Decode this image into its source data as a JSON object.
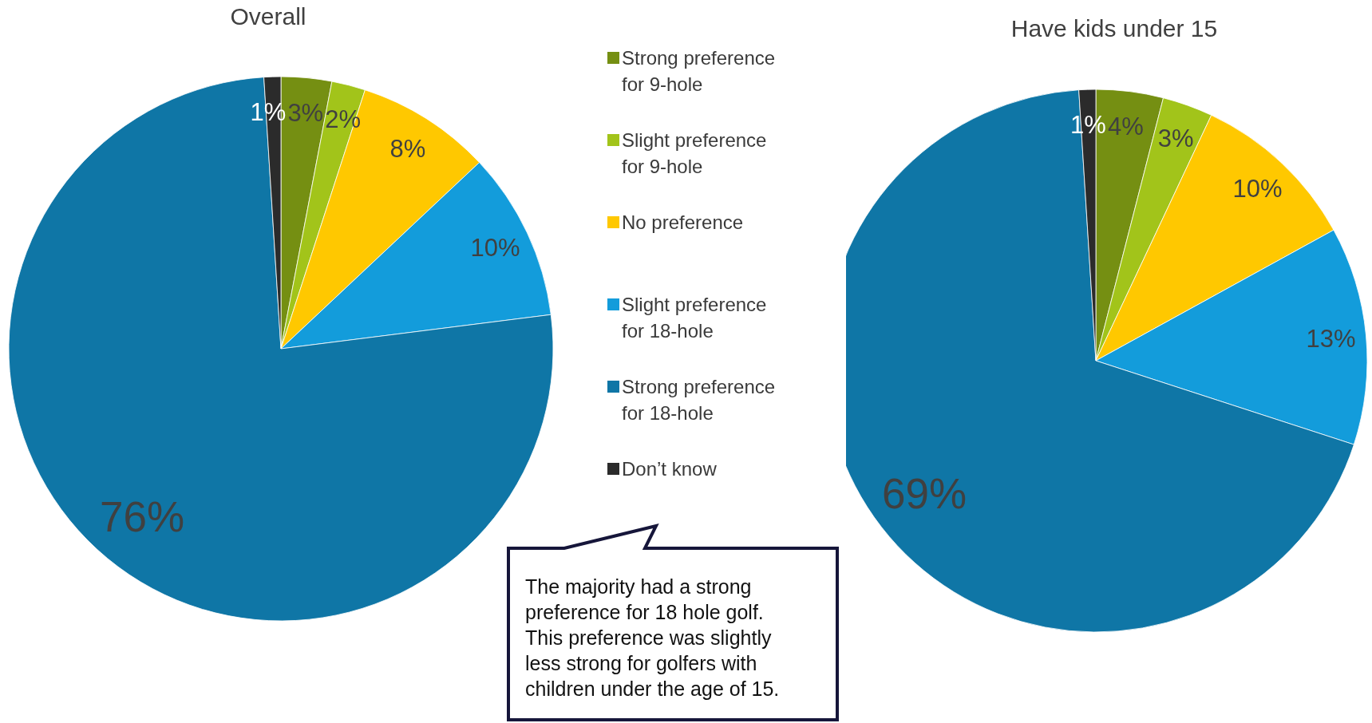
{
  "chart_data": [
    {
      "type": "pie",
      "title": "Overall",
      "categories": [
        "Strong preference for 9-hole",
        "Slight preference for 9-hole",
        "No preference",
        "Slight preference for 18-hole",
        "Strong preference for 18-hole",
        "Don’t know"
      ],
      "values": [
        3,
        2,
        8,
        10,
        76,
        1
      ],
      "value_labels": [
        "3%",
        "2%",
        "8%",
        "10%",
        "76%",
        "1%"
      ],
      "colors": [
        "#758f12",
        "#a2c41a",
        "#ffc800",
        "#139cdb",
        "#0f76a6",
        "#2b2b2b"
      ],
      "legend": "right",
      "annotations": [
        "The majority had a strong preference for 18 hole golf. This preference was slightly less strong for golfers with children under the age of 15."
      ]
    },
    {
      "type": "pie",
      "title": "Have kids under 15",
      "categories": [
        null,
        null,
        null,
        null,
        null,
        null
      ],
      "values": [
        4,
        3,
        10,
        13,
        69,
        1
      ],
      "value_labels": [
        "4%",
        "3%",
        "10%",
        "13%",
        "69%",
        "1%"
      ],
      "colors": [
        "#758f12",
        "#a2c41a",
        "#ffc800",
        "#139cdb",
        "#0f76a6",
        "#2b2b2b"
      ]
    }
  ]
}
